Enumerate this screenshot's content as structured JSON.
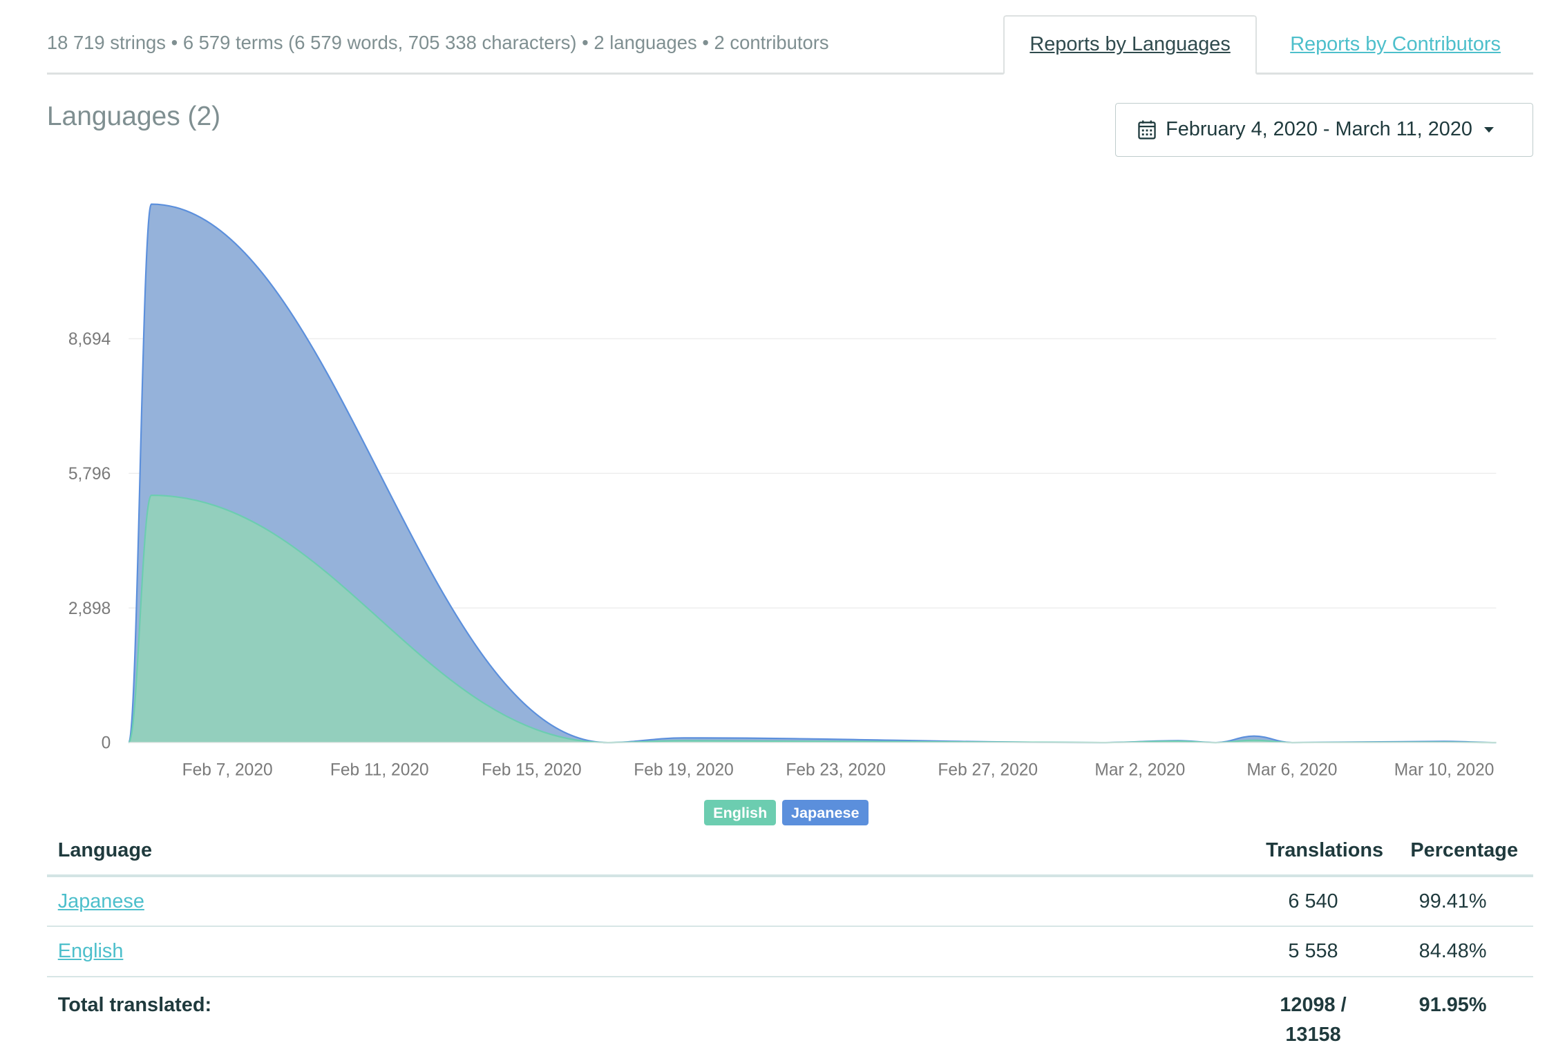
{
  "summary": "18 719 strings • 6 579 terms (6 579 words, 705 338 characters) • 2 languages • 2 contributors",
  "tabs": [
    {
      "label": "Reports by Languages",
      "active": true
    },
    {
      "label": "Reports by Contributors",
      "active": false
    }
  ],
  "section_title": "Languages (2)",
  "date_range": {
    "label": "February 4, 2020 - March 11, 2020",
    "icon": "calendar-icon"
  },
  "colors": {
    "english": "#6ccdb0",
    "japanese": "#5b8fdc",
    "english_fill": "#93cfbd",
    "japanese_fill": "#95b2da",
    "link": "#4dbfcb"
  },
  "chart_data": {
    "type": "area",
    "stacked": true,
    "grid": true,
    "ylim": [
      0,
      11592
    ],
    "y_ticks": [
      "0",
      "2,898",
      "5,796",
      "8,694"
    ],
    "y_tick_values": [
      0,
      2898,
      5796,
      8694
    ],
    "x_ticks": [
      "Feb 7, 2020",
      "Feb 11, 2020",
      "Feb 15, 2020",
      "Feb 19, 2020",
      "Feb 23, 2020",
      "Feb 27, 2020",
      "Mar 2, 2020",
      "Mar 6, 2020",
      "Mar 10, 2020"
    ],
    "x_tick_dates": [
      "2020-02-07",
      "2020-02-11",
      "2020-02-15",
      "2020-02-19",
      "2020-02-23",
      "2020-02-27",
      "2020-03-02",
      "2020-03-06",
      "2020-03-10"
    ],
    "x": [
      "2020-02-04",
      "2020-02-05",
      "2020-02-17",
      "2020-02-19",
      "2020-03-01",
      "2020-03-03",
      "2020-03-04",
      "2020-03-05",
      "2020-03-06",
      "2020-03-10",
      "2020-03-11"
    ],
    "series": [
      {
        "name": "English",
        "values": [
          0,
          5324,
          0,
          40,
          0,
          30,
          0,
          50,
          0,
          10,
          0
        ]
      },
      {
        "name": "Japanese",
        "values": [
          0,
          6268,
          0,
          60,
          0,
          10,
          0,
          90,
          0,
          15,
          0
        ]
      }
    ],
    "legend": "bottom-center"
  },
  "table": {
    "headers": [
      "Language",
      "Translations",
      "Percentage"
    ],
    "rows": [
      {
        "language": "Japanese",
        "translations": "6 540",
        "percentage": "99.41%"
      },
      {
        "language": "English",
        "translations": "5 558",
        "percentage": "84.48%"
      }
    ],
    "total": {
      "label": "Total translated:",
      "translations_line1": "12098 /",
      "translations_line2": "13158",
      "percentage": "91.95%"
    }
  }
}
